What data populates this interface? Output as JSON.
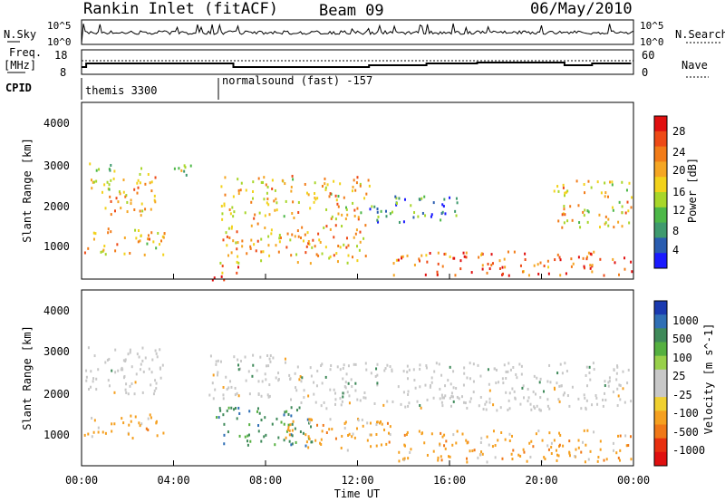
{
  "header": {
    "station": "Rankin Inlet (fitACF)",
    "beam": "Beam 09",
    "date": "06/May/2010"
  },
  "noise_panel": {
    "left_label": "N.Sky",
    "left_ticks": [
      "10^5",
      "10^0"
    ],
    "right_label": "N.Search",
    "right_ticks": [
      "10^5",
      "10^0"
    ]
  },
  "freq_panel": {
    "left_label_top": "Freq.",
    "left_label_unit": "[MHz]",
    "left_ticks": [
      "18",
      "8"
    ],
    "right_label": "Nave",
    "right_ticks": [
      "60",
      "0"
    ]
  },
  "cpid": {
    "label": "CPID",
    "segments": [
      {
        "text": "themis 3300",
        "start_hour": 0
      },
      {
        "text": "normalsound (fast) -157",
        "start_hour": 5.95
      }
    ]
  },
  "power_panel": {
    "ylabel": "Slant Range [km]",
    "yticks": [
      "4000",
      "3000",
      "2000",
      "1000"
    ],
    "colorbar_label": "Power [dB]",
    "colorbar_ticks": [
      "28",
      "24",
      "20",
      "16",
      "12",
      "8",
      "4"
    ],
    "colors": [
      "#1a1aff",
      "#2a5db0",
      "#3f9a6e",
      "#4db848",
      "#a8d62a",
      "#f2d21b",
      "#f5a623",
      "#f27c18",
      "#ee4a16",
      "#e01010"
    ]
  },
  "velocity_panel": {
    "ylabel": "Slant Range [km]",
    "yticks": [
      "4000",
      "3000",
      "2000",
      "1000"
    ],
    "colorbar_label": "Velocity [m s^-1]",
    "colorbar_ticks": [
      "1000",
      "500",
      "100",
      "25",
      "-25",
      "-100",
      "-500",
      "-1000"
    ],
    "colors": [
      "#1a3ab0",
      "#2f6fb5",
      "#3f8a5a",
      "#55b040",
      "#98d04a",
      "#c8c8c8",
      "#c8c8c8",
      "#f0d030",
      "#f5a020",
      "#f07818",
      "#e83010",
      "#e01010"
    ]
  },
  "time_axis": {
    "xlabel": "Time UT",
    "ticks": [
      "00:00",
      "04:00",
      "08:00",
      "12:00",
      "16:00",
      "20:00",
      "00:00"
    ]
  },
  "chart_data": {
    "type": "heatmap",
    "x_unit": "hours UT",
    "xlim": [
      0,
      24
    ],
    "ylim_km": [
      180,
      4600
    ],
    "power_regions_db": [
      {
        "t": [
          0.1,
          1.4
        ],
        "r": [
          2300,
          3200
        ],
        "db": 16
      },
      {
        "t": [
          1.0,
          2.0
        ],
        "r": [
          1700,
          2700
        ],
        "db": 22
      },
      {
        "t": [
          2.1,
          3.4
        ],
        "r": [
          1800,
          3000
        ],
        "db": 20
      },
      {
        "t": [
          3.6,
          4.8
        ],
        "r": [
          2800,
          3200
        ],
        "db": 14
      },
      {
        "t": [
          0.1,
          3.6
        ],
        "r": [
          800,
          1500
        ],
        "db": 20
      },
      {
        "t": [
          5.6,
          6.8
        ],
        "r": [
          180,
          600
        ],
        "db": 26
      },
      {
        "t": [
          6.0,
          12.5
        ],
        "r": [
          1700,
          2800
        ],
        "db": 20
      },
      {
        "t": [
          6.0,
          12.5
        ],
        "r": [
          600,
          1600
        ],
        "db": 22
      },
      {
        "t": [
          12.5,
          16.5
        ],
        "r": [
          1600,
          2300
        ],
        "db": 10
      },
      {
        "t": [
          13.5,
          23.9
        ],
        "r": [
          300,
          900
        ],
        "db": 26
      },
      {
        "t": [
          20.5,
          23.9
        ],
        "r": [
          1500,
          2700
        ],
        "db": 20
      }
    ],
    "velocity_regions_ms": [
      {
        "t": [
          0.1,
          3.6
        ],
        "r": [
          2000,
          3200
        ],
        "v": 0
      },
      {
        "t": [
          0.1,
          3.6
        ],
        "r": [
          900,
          1500
        ],
        "v": -300
      },
      {
        "t": [
          5.5,
          9.0
        ],
        "r": [
          1900,
          3000
        ],
        "v": 0
      },
      {
        "t": [
          5.8,
          10.0
        ],
        "r": [
          700,
          1700
        ],
        "v": 300
      },
      {
        "t": [
          8.5,
          13.5
        ],
        "r": [
          600,
          1400
        ],
        "v": -150
      },
      {
        "t": [
          9.0,
          23.9
        ],
        "r": [
          1600,
          2800
        ],
        "v": 0
      },
      {
        "t": [
          13.5,
          23.9
        ],
        "r": [
          300,
          1100
        ],
        "v": -200
      }
    ]
  }
}
